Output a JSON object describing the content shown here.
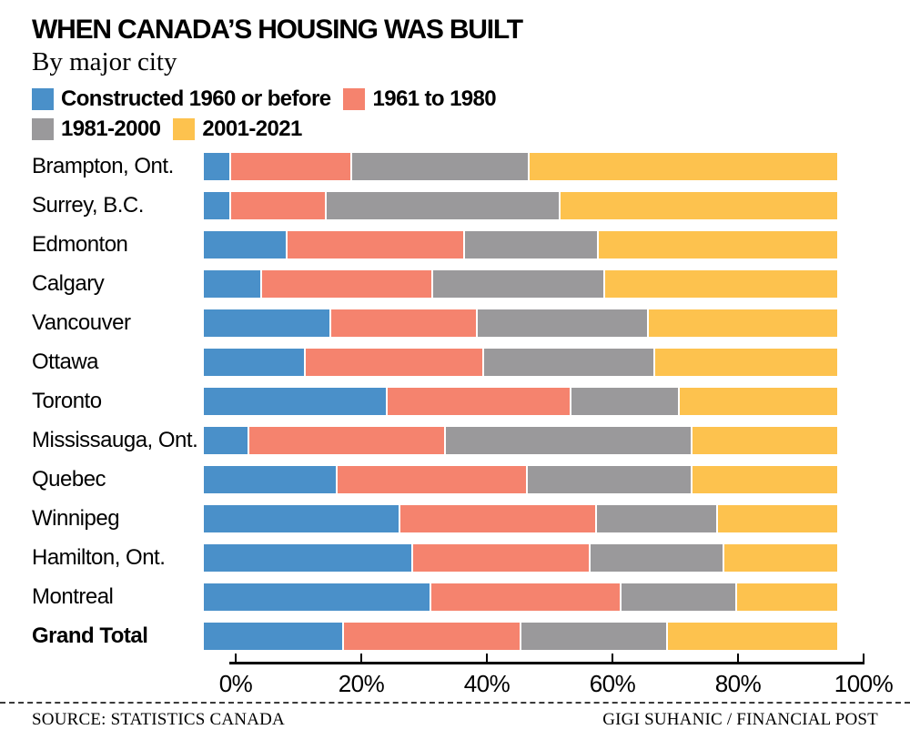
{
  "header": {
    "title": "WHEN CANADA’S HOUSING WAS BUILT",
    "subtitle": "By major city"
  },
  "footer": {
    "source": "SOURCE: STATISTICS CANADA",
    "credit": "GIGI SUHANIC / FINANCIAL POST"
  },
  "colors": {
    "blue": "#4a90c9",
    "salmon": "#f5836e",
    "gray": "#9a999b",
    "yellow": "#fdc24e",
    "axis": "#000000"
  },
  "chart_data": {
    "type": "bar",
    "stacked": true,
    "orientation": "horizontal",
    "title": "WHEN CANADA’S HOUSING WAS BUILT",
    "subtitle": "By major city",
    "xlabel": "",
    "ylabel": "",
    "xlim": [
      0,
      100
    ],
    "x_ticks": [
      "0%",
      "20%",
      "40%",
      "60%",
      "80%",
      "100%"
    ],
    "grid": false,
    "legend_position": "top",
    "bold_category": "Grand Total",
    "categories": [
      "Brampton, Ont.",
      "Surrey, B.C.",
      "Edmonton",
      "Calgary",
      "Vancouver",
      "Ottawa",
      "Toronto",
      "Mississauga, Ont.",
      "Quebec",
      "Winnipeg",
      "Hamilton, Ont.",
      "Montreal",
      "Grand Total"
    ],
    "series": [
      {
        "name": "Constructed 1960 or before",
        "color": "#4a90c9",
        "values": [
          4,
          4,
          13,
          9,
          20,
          16,
          29,
          7,
          21,
          31,
          33,
          36,
          22
        ]
      },
      {
        "name": "1961 to 1980",
        "color": "#f5836e",
        "values": [
          19,
          15,
          28,
          27,
          23,
          28,
          29,
          31,
          30,
          31,
          28,
          30,
          28
        ]
      },
      {
        "name": "1981-2000",
        "color": "#9a999b",
        "values": [
          28,
          37,
          21,
          27,
          27,
          27,
          17,
          39,
          26,
          19,
          21,
          18,
          23
        ]
      },
      {
        "name": "2001-2021",
        "color": "#fdc24e",
        "values": [
          49,
          44,
          38,
          37,
          30,
          29,
          25,
          23,
          23,
          19,
          18,
          16,
          27
        ]
      }
    ]
  }
}
